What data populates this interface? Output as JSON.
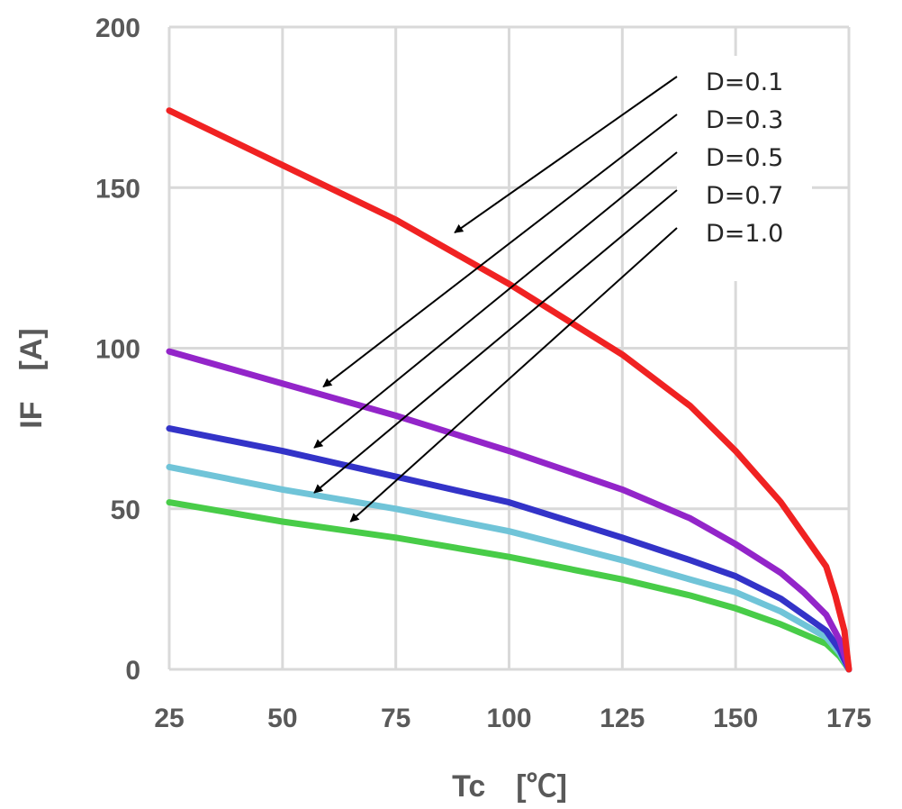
{
  "chart_data": {
    "type": "line",
    "title": "",
    "xlabel": "Tc　[℃]",
    "ylabel": "IF　[A]",
    "xlim": [
      25,
      175
    ],
    "ylim": [
      0,
      200
    ],
    "xticks": [
      25,
      50,
      75,
      100,
      125,
      150,
      175
    ],
    "yticks": [
      0,
      50,
      100,
      150,
      200
    ],
    "xtick_labels": [
      "25",
      "50",
      "75",
      "100",
      "125",
      "150",
      "175"
    ],
    "ytick_labels": [
      "0",
      "50",
      "100",
      "150",
      "200"
    ],
    "grid": true,
    "legend_position": "top-right",
    "series": [
      {
        "name": "D=0.1",
        "color": "#f02222",
        "points": [
          [
            25,
            174
          ],
          [
            50,
            157
          ],
          [
            75,
            140
          ],
          [
            100,
            120
          ],
          [
            125,
            98
          ],
          [
            140,
            82
          ],
          [
            150,
            68
          ],
          [
            160,
            52
          ],
          [
            165,
            42
          ],
          [
            170,
            32
          ],
          [
            172,
            23
          ],
          [
            174,
            12
          ],
          [
            175,
            0
          ]
        ]
      },
      {
        "name": "D=0.3",
        "color": "#9325c9",
        "points": [
          [
            25,
            99
          ],
          [
            50,
            89
          ],
          [
            75,
            79
          ],
          [
            100,
            68
          ],
          [
            125,
            56
          ],
          [
            140,
            47
          ],
          [
            150,
            39
          ],
          [
            160,
            30
          ],
          [
            165,
            24
          ],
          [
            170,
            17
          ],
          [
            173,
            9
          ],
          [
            175,
            0
          ]
        ]
      },
      {
        "name": "D=0.5",
        "color": "#3333c8",
        "points": [
          [
            25,
            75
          ],
          [
            50,
            68
          ],
          [
            75,
            60
          ],
          [
            100,
            52
          ],
          [
            125,
            41
          ],
          [
            140,
            34
          ],
          [
            150,
            29
          ],
          [
            160,
            22
          ],
          [
            165,
            17
          ],
          [
            170,
            12
          ],
          [
            173,
            6
          ],
          [
            175,
            0
          ]
        ]
      },
      {
        "name": "D=0.7",
        "color": "#70c4d8",
        "points": [
          [
            25,
            63
          ],
          [
            50,
            56
          ],
          [
            75,
            50
          ],
          [
            100,
            43
          ],
          [
            125,
            34
          ],
          [
            140,
            28
          ],
          [
            150,
            24
          ],
          [
            160,
            18
          ],
          [
            165,
            14
          ],
          [
            170,
            10
          ],
          [
            173,
            5
          ],
          [
            175,
            0
          ]
        ]
      },
      {
        "name": "D=1.0",
        "color": "#48cc48",
        "points": [
          [
            25,
            52
          ],
          [
            50,
            46
          ],
          [
            75,
            41
          ],
          [
            100,
            35
          ],
          [
            125,
            28
          ],
          [
            140,
            23
          ],
          [
            150,
            19
          ],
          [
            160,
            14
          ],
          [
            165,
            11
          ],
          [
            170,
            8
          ],
          [
            173,
            4
          ],
          [
            175,
            0
          ]
        ]
      }
    ],
    "annotations": [
      {
        "label": "D=0.1",
        "arrow_to": [
          88,
          136
        ]
      },
      {
        "label": "D=0.3",
        "arrow_to": [
          59,
          88
        ]
      },
      {
        "label": "D=0.5",
        "arrow_to": [
          57,
          69
        ]
      },
      {
        "label": "D=0.7",
        "arrow_to": [
          57,
          55
        ]
      },
      {
        "label": "D=1.0",
        "arrow_to": [
          65,
          46
        ]
      }
    ]
  }
}
